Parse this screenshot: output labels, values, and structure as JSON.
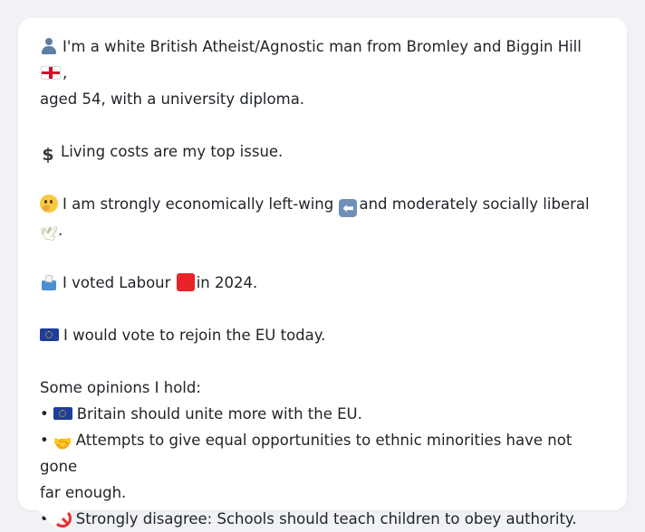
{
  "profile": {
    "intro": {
      "icon": "person-icon",
      "line1_text": "I'm a white British Atheist/Agnostic man from Bromley and Biggin Hill",
      "flag_icon": "england-flag-icon",
      "line1_end": ",",
      "line2_text": "aged 54, with a university diploma."
    },
    "issue": {
      "icon": "dollar-icon",
      "text": "Living costs are my top issue."
    },
    "ideology": {
      "icon": "thinking-face-icon",
      "text_a": "I am strongly economically left-wing",
      "arrow_icon": "left-arrow-icon",
      "text_b": "and moderately socially liberal",
      "dove_icon": "dove-icon",
      "text_end": "."
    },
    "vote": {
      "icon": "ballot-box-icon",
      "text_a": "I voted Labour",
      "party_icon": "red-square-icon",
      "text_b": "in 2024."
    },
    "eu": {
      "icon": "eu-flag-icon",
      "text": "I would vote to rejoin the EU today."
    },
    "opinions": {
      "heading": "Some opinions I hold:",
      "bullet": "•",
      "items": [
        {
          "icon": "eu-flag-icon",
          "text": "Britain should unite more with the EU."
        },
        {
          "icon": "handshake-icon",
          "text_line1": "Attempts to give equal opportunities to ethnic minorities have not gone",
          "text_line2": "far enough."
        },
        {
          "icon": "prohibited-icon",
          "text": "Strongly disagree: Schools should teach children to obey authority."
        }
      ]
    }
  },
  "glyphs": {
    "dollar": "$",
    "arrow": "⬅",
    "dove": "🕊",
    "handshake": "🤝"
  },
  "colors": {
    "background": "#f1f2f5",
    "card": "#ffffff",
    "text": "#1f2328",
    "labour_red": "#e8232a",
    "eu_blue": "#1f3d99"
  }
}
